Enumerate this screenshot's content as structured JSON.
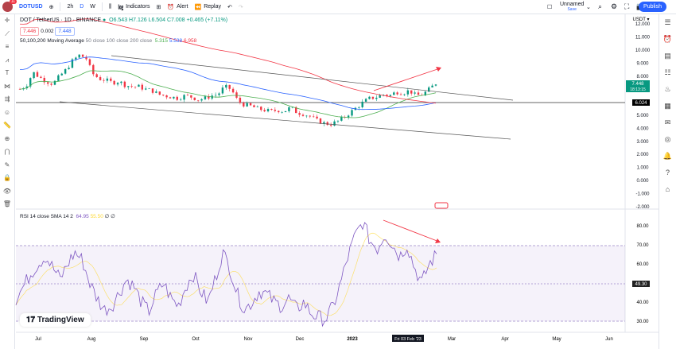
{
  "header": {
    "symbol": "DOTUSD",
    "intervals": [
      "2h",
      "D",
      "W"
    ],
    "indicators": "Indicators",
    "alert": "Alert",
    "replay": "Replay",
    "layout_name": "Unnamed",
    "layout_status": "Save",
    "publish": "Publish",
    "notif_count": "11"
  },
  "legend": {
    "title": "DOT / TetherUS · 1D · BINANCE",
    "o": "O6.543",
    "h": "H7.126",
    "l": "L6.504",
    "c": "C7.008",
    "chg": "+0.465 (+7.11%)",
    "bid": "7.446",
    "spread": "0.002",
    "ask": "7.448",
    "ma_label": "50,100,200 Moving Average",
    "ma_params": "50 close 100 close 200 close",
    "ma50": "5.315",
    "ma100": "5.538",
    "ma200": "6.958"
  },
  "rsi_legend": {
    "label": "RSI 14 close SMA 14 2",
    "rsi": "64.95",
    "sma": "55.50"
  },
  "price_axis": {
    "currency": "USDT",
    "ticks": [
      "12.000",
      "11.000",
      "10.000",
      "9.000",
      "8.000",
      "5.000",
      "4.000",
      "3.000",
      "2.000",
      "1.000",
      "0.000",
      "-1.000",
      "-2.000"
    ],
    "last_price": "7.448",
    "countdown": "18:13:15",
    "line_price": "6.024"
  },
  "rsi_axis": {
    "ticks": [
      "80.00",
      "70.00",
      "60.00",
      "40.00",
      "30.00"
    ],
    "current": "49.30"
  },
  "time_axis": {
    "labels": [
      "Jul",
      "Aug",
      "Sep",
      "Oct",
      "Nov",
      "Dec",
      "2023",
      "Mar",
      "Apr",
      "May",
      "Jun"
    ],
    "crosshair": "Fri 03 Feb '23"
  },
  "brand": "TradingView",
  "colors": {
    "up": "#089981",
    "down": "#f23645",
    "ma50": "#4caf50",
    "ma100": "#2962ff",
    "ma200": "#f23645",
    "rsi": "#7e57c2",
    "rsi_sma": "#fdd835"
  },
  "chart_data": {
    "type": "candlestick",
    "price_path": [
      7.0,
      7.3,
      8.3,
      7.9,
      7.6,
      7.4,
      8.0,
      8.5,
      9.2,
      9.6,
      9.4,
      8.2,
      7.8,
      7.7,
      7.5,
      7.6,
      7.3,
      7.2,
      7.2,
      7.0,
      6.9,
      6.6,
      6.5,
      6.4,
      6.3,
      6.5,
      6.4,
      6.2,
      6.3,
      6.5,
      6.6,
      7.2,
      7.0,
      6.1,
      5.8,
      5.7,
      5.5,
      5.4,
      5.3,
      5.4,
      5.3,
      5.6,
      5.2,
      5.1,
      4.9,
      4.6,
      4.4,
      4.3,
      4.5,
      4.8,
      5.2,
      5.6,
      6.0,
      6.3,
      6.4,
      6.6,
      6.5,
      6.8,
      6.7,
      6.9,
      6.5,
      6.6,
      7.0,
      7.45
    ],
    "rsi_path": [
      42,
      48,
      55,
      60,
      64,
      58,
      52,
      60,
      66,
      62,
      50,
      42,
      36,
      38,
      45,
      52,
      48,
      40,
      35,
      44,
      50,
      42,
      38,
      48,
      55,
      46,
      40,
      52,
      66,
      58,
      44,
      36,
      40,
      46,
      44,
      40,
      38,
      42,
      36,
      40,
      34,
      32,
      31,
      38,
      50,
      64,
      75,
      82,
      72,
      68,
      76,
      70,
      64,
      70,
      58,
      50,
      60,
      65
    ],
    "ylim": [
      -2,
      12
    ]
  }
}
